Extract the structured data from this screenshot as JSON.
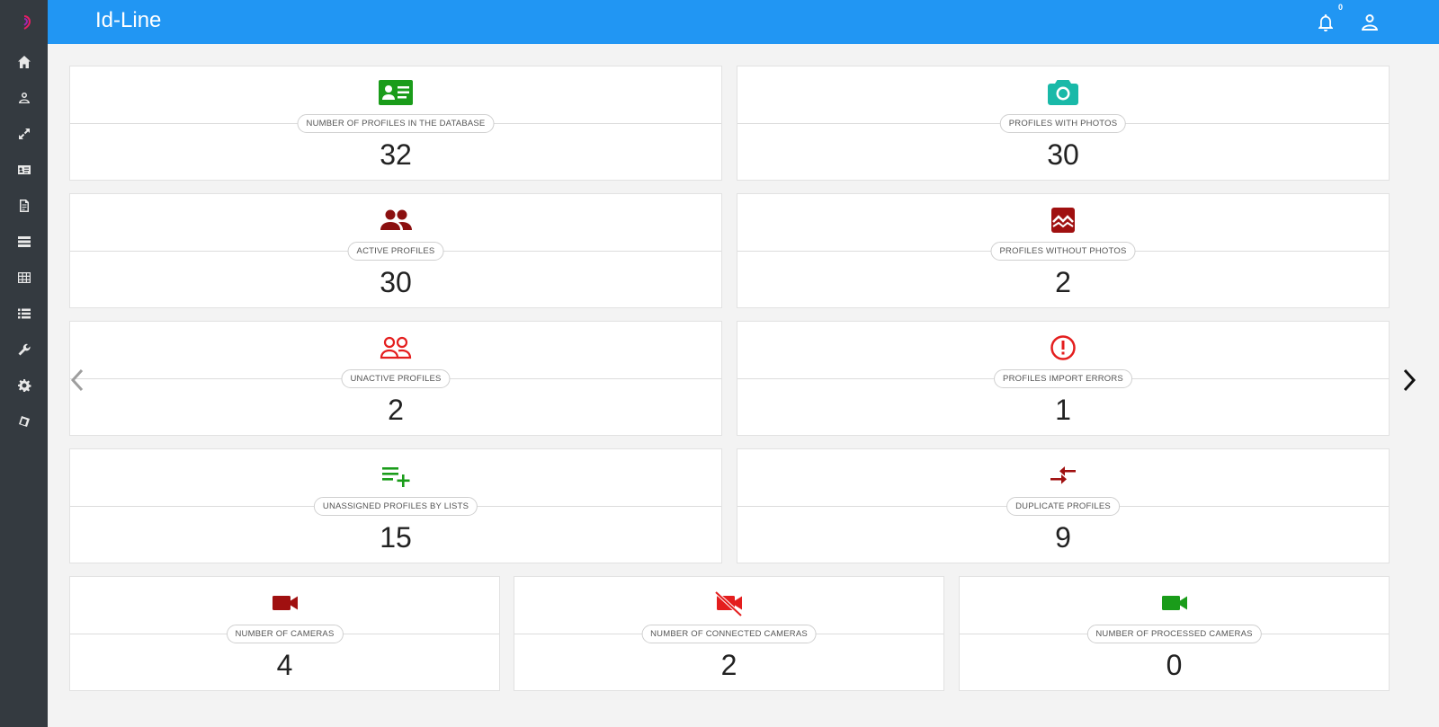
{
  "app": {
    "title": "Id-Line"
  },
  "notifications": {
    "count": "0"
  },
  "sidebar": {
    "items": [
      {
        "icon": "home-icon"
      },
      {
        "icon": "person-icon"
      },
      {
        "icon": "expand-icon"
      },
      {
        "icon": "id-card-icon"
      },
      {
        "icon": "report-icon"
      },
      {
        "icon": "list-table-icon"
      },
      {
        "icon": "grid-table-icon"
      },
      {
        "icon": "list-icon"
      },
      {
        "icon": "wrench-icon"
      },
      {
        "icon": "gear-icon"
      },
      {
        "icon": "cube-icon"
      }
    ]
  },
  "cards": {
    "profiles_db": {
      "label": "NUMBER OF PROFILES IN THE DATABASE",
      "value": "32",
      "color": "#1a9c1a"
    },
    "with_photos": {
      "label": "PROFILES WITH PHOTOS",
      "value": "30",
      "color": "#19b9a8"
    },
    "active": {
      "label": "ACTIVE PROFILES",
      "value": "30",
      "color": "#8b1010"
    },
    "without_photos": {
      "label": "PROFILES WITHOUT PHOTOS",
      "value": "2",
      "color": "#a01010"
    },
    "unactive": {
      "label": "UNACTIVE PROFILES",
      "value": "2",
      "color": "#e41e1e"
    },
    "import_errors": {
      "label": "PROFILES IMPORT ERRORS",
      "value": "1",
      "color": "#e41e1e"
    },
    "unassigned": {
      "label": "UNASSIGNED PROFILES BY LISTS",
      "value": "15",
      "color": "#1a9c1a"
    },
    "duplicate": {
      "label": "DUPLICATE PROFILES",
      "value": "9",
      "color": "#a01010"
    },
    "cameras": {
      "label": "NUMBER OF CAMERAS",
      "value": "4",
      "color": "#a01010"
    },
    "connected_cameras": {
      "label": "NUMBER OF CONNECTED CAMERAS",
      "value": "2",
      "color": "#e41e1e"
    },
    "processed_cameras": {
      "label": "NUMBER OF PROCESSED CAMERAS",
      "value": "0",
      "color": "#1a9c1a"
    }
  },
  "accent": "#2196f3"
}
